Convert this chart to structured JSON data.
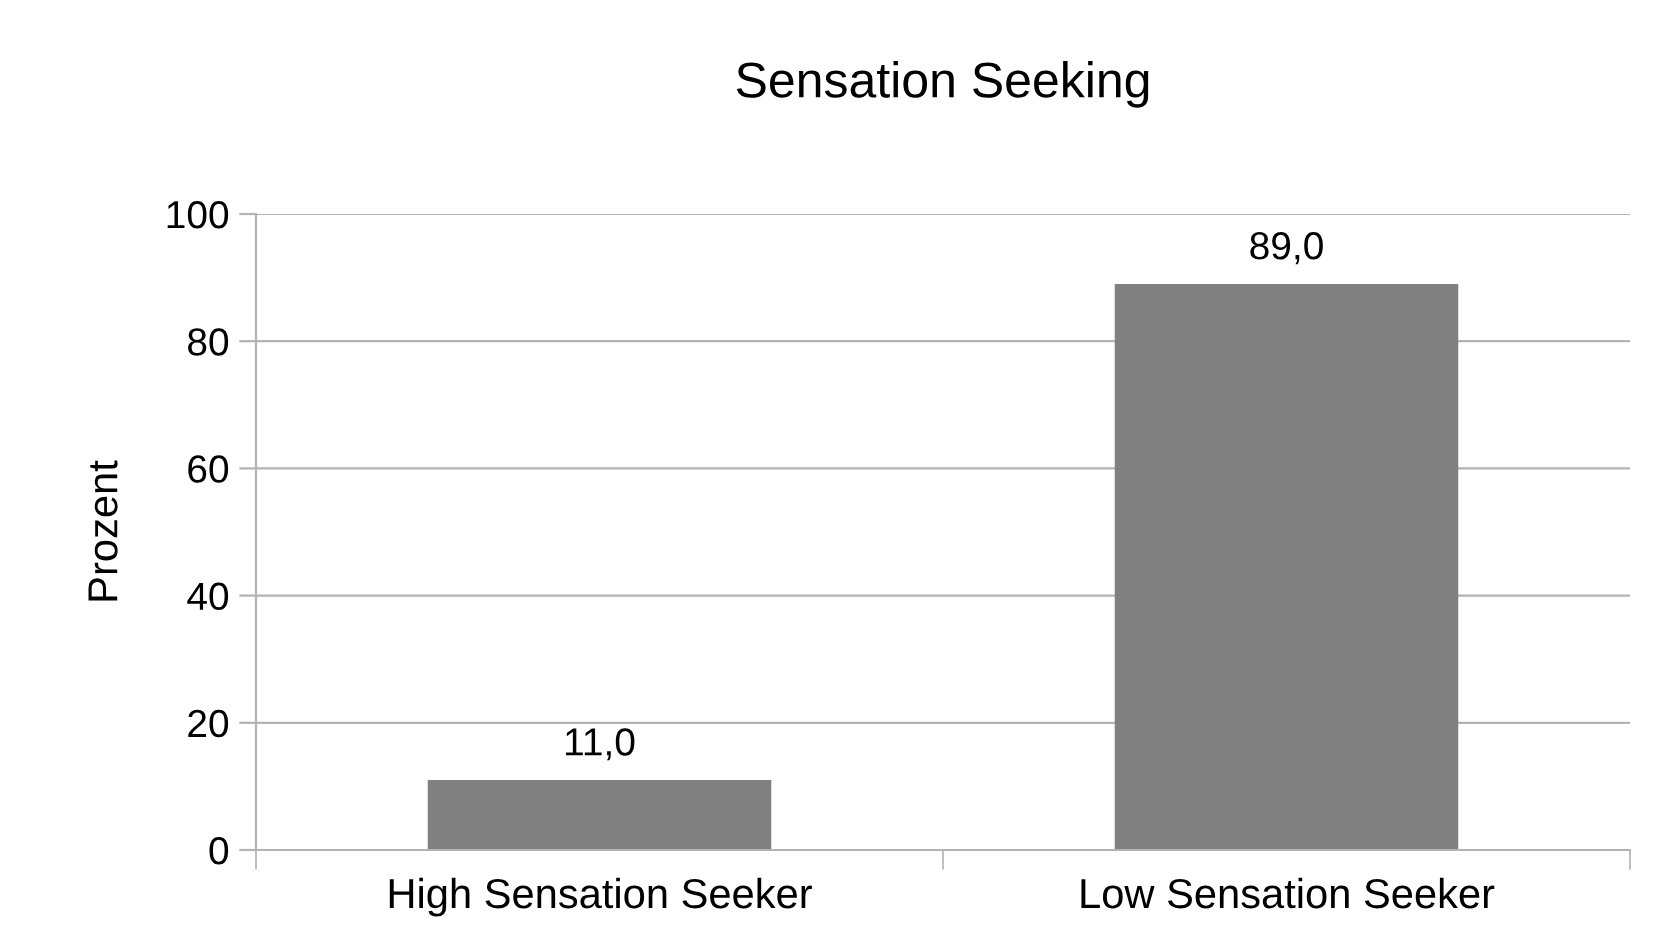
{
  "chart_data": {
    "type": "bar",
    "title": "Sensation Seeking",
    "ylabel": "Prozent",
    "categories": [
      "High Sensation Seeker",
      "Low Sensation Seeker"
    ],
    "values": [
      11.0,
      89.0
    ],
    "value_labels": [
      "11,0",
      "89,0"
    ],
    "color": "#808080",
    "ylim": [
      0,
      100
    ],
    "yticks": [
      0,
      20,
      40,
      60,
      80,
      100
    ],
    "grid": "y"
  }
}
